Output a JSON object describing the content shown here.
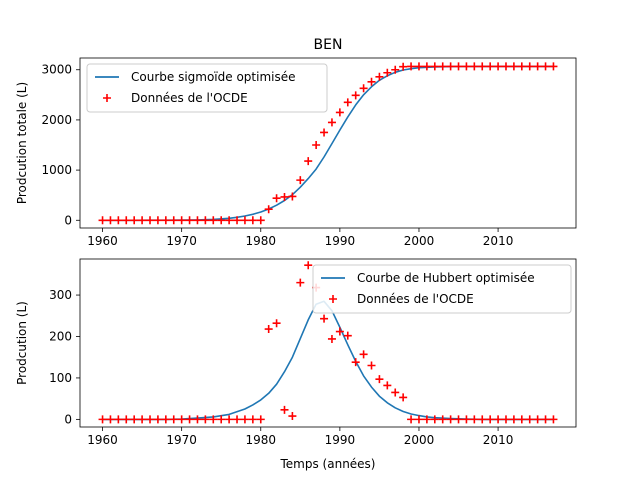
{
  "figure": {
    "title": "BEN"
  },
  "chart_data": [
    {
      "type": "line",
      "title": "BEN",
      "xlabel": "",
      "ylabel": "Prodcution totale (L)",
      "xlim": [
        1957.15,
        2019.85
      ],
      "ylim": [
        -154,
        3234
      ],
      "xticks": [
        1960,
        1970,
        1980,
        1990,
        2000,
        2010
      ],
      "yticks": [
        0,
        1000,
        2000,
        3000
      ],
      "grid": false,
      "legend_position": "upper-left",
      "series": [
        {
          "name": "Courbe sigmoïde optimisée",
          "kind": "line",
          "color": "#1f77b4",
          "x": [
            1960,
            1962,
            1964,
            1966,
            1968,
            1970,
            1972,
            1974,
            1976,
            1977,
            1978,
            1979,
            1980,
            1981,
            1982,
            1983,
            1984,
            1985,
            1986,
            1987,
            1988,
            1989,
            1990,
            1991,
            1992,
            1993,
            1994,
            1995,
            1996,
            1997,
            1998,
            1999,
            2000,
            2002,
            2004,
            2006,
            2008,
            2010,
            2012,
            2014,
            2017
          ],
          "y": [
            0,
            0,
            0,
            1,
            2,
            4,
            8,
            18,
            40,
            60,
            85,
            120,
            165,
            225,
            300,
            395,
            510,
            660,
            830,
            1020,
            1260,
            1530,
            1800,
            2060,
            2300,
            2500,
            2660,
            2790,
            2880,
            2950,
            2995,
            3020,
            3040,
            3055,
            3062,
            3065,
            3066,
            3067,
            3067,
            3067,
            3067
          ]
        },
        {
          "name": "Données de l'OCDE",
          "kind": "scatter",
          "marker": "+",
          "color": "#ff0000",
          "x": [
            1960,
            1961,
            1962,
            1963,
            1964,
            1965,
            1966,
            1967,
            1968,
            1969,
            1970,
            1971,
            1972,
            1973,
            1974,
            1975,
            1976,
            1977,
            1978,
            1979,
            1980,
            1981,
            1982,
            1983,
            1984,
            1985,
            1986,
            1987,
            1988,
            1989,
            1990,
            1991,
            1992,
            1993,
            1994,
            1995,
            1996,
            1997,
            1998,
            1999,
            2000,
            2001,
            2002,
            2003,
            2004,
            2005,
            2006,
            2007,
            2008,
            2009,
            2010,
            2011,
            2012,
            2013,
            2014,
            2015,
            2016,
            2017
          ],
          "y": [
            0,
            0,
            0,
            0,
            0,
            0,
            0,
            0,
            0,
            0,
            0,
            0,
            0,
            0,
            0,
            0,
            0,
            0,
            0,
            0,
            0,
            220,
            440,
            465,
            475,
            800,
            1180,
            1500,
            1750,
            1950,
            2150,
            2350,
            2490,
            2630,
            2760,
            2860,
            2940,
            3000,
            3060,
            3066,
            3066,
            3066,
            3066,
            3066,
            3066,
            3066,
            3066,
            3066,
            3066,
            3066,
            3066,
            3066,
            3066,
            3066,
            3066,
            3066,
            3066,
            3066
          ]
        }
      ]
    },
    {
      "type": "line",
      "title": "",
      "xlabel": "Temps (années)",
      "ylabel": "Prodcution (L)",
      "xlim": [
        1957.15,
        2019.85
      ],
      "ylim": [
        -18.4,
        387
      ],
      "xticks": [
        1960,
        1970,
        1980,
        1990,
        2000,
        2010
      ],
      "yticks": [
        0,
        100,
        200,
        300
      ],
      "grid": false,
      "legend_position": "upper-right",
      "series": [
        {
          "name": "Courbe de Hubbert optimisée",
          "kind": "line",
          "color": "#1f77b4",
          "x": [
            1960,
            1964,
            1968,
            1970,
            1972,
            1974,
            1976,
            1978,
            1979,
            1980,
            1981,
            1982,
            1983,
            1984,
            1985,
            1986,
            1987,
            1988,
            1989,
            1990,
            1991,
            1992,
            1993,
            1994,
            1995,
            1996,
            1997,
            1998,
            1999,
            2000,
            2001,
            2002,
            2004,
            2006,
            2008,
            2010,
            2014,
            2017
          ],
          "y": [
            0,
            0,
            0,
            1,
            3,
            6,
            12,
            25,
            35,
            47,
            63,
            85,
            115,
            150,
            195,
            240,
            278,
            285,
            262,
            222,
            180,
            140,
            105,
            78,
            56,
            40,
            28,
            19,
            13,
            9,
            6,
            4,
            2,
            1,
            0,
            0,
            0,
            0
          ]
        },
        {
          "name": "Données de l'OCDE",
          "kind": "scatter",
          "marker": "+",
          "color": "#ff0000",
          "x": [
            1960,
            1961,
            1962,
            1963,
            1964,
            1965,
            1966,
            1967,
            1968,
            1969,
            1970,
            1971,
            1972,
            1973,
            1974,
            1975,
            1976,
            1977,
            1978,
            1979,
            1980,
            1981,
            1982,
            1983,
            1984,
            1985,
            1986,
            1987,
            1988,
            1989,
            1990,
            1991,
            1992,
            1993,
            1994,
            1995,
            1996,
            1997,
            1998,
            1999,
            2000,
            2001,
            2002,
            2003,
            2004,
            2005,
            2006,
            2007,
            2008,
            2009,
            2010,
            2011,
            2012,
            2013,
            2014,
            2015,
            2016,
            2017
          ],
          "y": [
            0,
            0,
            0,
            0,
            0,
            0,
            0,
            0,
            0,
            0,
            0,
            0,
            0,
            0,
            0,
            0,
            0,
            0,
            0,
            0,
            0,
            218,
            232,
            23,
            8,
            330,
            372,
            318,
            243,
            194,
            212,
            202,
            138,
            157,
            130,
            97,
            82,
            65,
            53,
            0,
            0,
            0,
            0,
            0,
            0,
            0,
            0,
            0,
            0,
            0,
            0,
            0,
            0,
            0,
            0,
            0,
            0,
            0
          ]
        }
      ]
    }
  ]
}
